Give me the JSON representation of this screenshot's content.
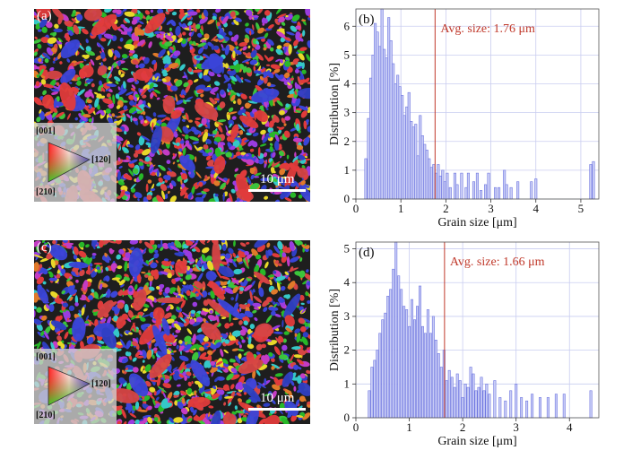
{
  "figure": {
    "panel_a": {
      "label": "(a)",
      "scale_bar": "10 μm",
      "ipf_key": {
        "dir_001": "[001]",
        "dir_120": "[120]",
        "dir_210": "[210]"
      }
    },
    "panel_c": {
      "label": "(c)",
      "scale_bar": "10 μm",
      "ipf_key": {
        "dir_001": "[001]",
        "dir_120": "[120]",
        "dir_210": "[210]"
      }
    }
  },
  "colors": {
    "bar_fill": "#c9cdf6",
    "bar_stroke": "#6e76e0",
    "avg_line": "#c0392b",
    "grid": "#c9cdf0"
  },
  "chart_data": [
    {
      "panel": "(b)",
      "type": "bar",
      "title": "",
      "xlabel": "Grain size [μm]",
      "ylabel": "Distribution [%]",
      "xlim": [
        0,
        5.4
      ],
      "ylim": [
        0,
        6.6
      ],
      "xticks": [
        0,
        1,
        2,
        3,
        4,
        5
      ],
      "yticks": [
        0,
        1,
        2,
        3,
        4,
        5,
        6
      ],
      "bin_width": 0.05,
      "avg_size": 1.76,
      "annotation": "Avg. size: 1.76 μm",
      "bins_x": [
        0.22,
        0.28,
        0.33,
        0.38,
        0.43,
        0.48,
        0.53,
        0.58,
        0.63,
        0.68,
        0.73,
        0.78,
        0.83,
        0.88,
        0.93,
        0.98,
        1.03,
        1.08,
        1.13,
        1.18,
        1.23,
        1.28,
        1.33,
        1.38,
        1.43,
        1.48,
        1.53,
        1.58,
        1.63,
        1.68,
        1.73,
        1.78,
        1.83,
        1.88,
        1.93,
        1.98,
        2.03,
        2.1,
        2.2,
        2.25,
        2.35,
        2.45,
        2.5,
        2.62,
        2.7,
        2.78,
        2.88,
        2.95,
        3.1,
        3.18,
        3.3,
        3.35,
        3.45,
        3.6,
        3.9,
        4.0,
        5.22,
        5.28
      ],
      "values": [
        1.4,
        2.8,
        4.2,
        5.0,
        6.1,
        5.8,
        5.3,
        6.6,
        5.2,
        4.9,
        6.3,
        5.5,
        4.7,
        4.0,
        4.3,
        3.9,
        3.6,
        2.9,
        3.2,
        3.7,
        2.7,
        2.5,
        2.6,
        1.5,
        2.9,
        2.2,
        1.9,
        1.7,
        1.4,
        1.1,
        1.2,
        0.9,
        1.2,
        0.8,
        1.0,
        0.6,
        0.9,
        0.4,
        0.9,
        0.5,
        0.9,
        0.4,
        0.9,
        0.6,
        0.9,
        0.3,
        0.5,
        0.9,
        0.4,
        0.4,
        1.0,
        0.5,
        0.4,
        0.6,
        0.6,
        0.7,
        1.2,
        1.3
      ]
    },
    {
      "panel": "(d)",
      "type": "bar",
      "title": "",
      "xlabel": "Grain size [μm]",
      "ylabel": "Distribution [%]",
      "xlim": [
        0,
        4.55
      ],
      "ylim": [
        0,
        5.2
      ],
      "xticks": [
        0,
        1,
        2,
        3,
        4
      ],
      "yticks": [
        0,
        1,
        2,
        3,
        4,
        5
      ],
      "bin_width": 0.04,
      "avg_size": 1.66,
      "annotation": "Avg. size: 1.66 μm",
      "bins_x": [
        0.25,
        0.3,
        0.35,
        0.4,
        0.45,
        0.5,
        0.55,
        0.6,
        0.65,
        0.7,
        0.75,
        0.8,
        0.85,
        0.9,
        0.95,
        1.0,
        1.05,
        1.1,
        1.15,
        1.2,
        1.25,
        1.3,
        1.35,
        1.4,
        1.45,
        1.5,
        1.55,
        1.6,
        1.65,
        1.7,
        1.75,
        1.8,
        1.85,
        1.9,
        1.95,
        2.0,
        2.05,
        2.1,
        2.15,
        2.2,
        2.25,
        2.3,
        2.35,
        2.4,
        2.45,
        2.5,
        2.6,
        2.7,
        2.8,
        2.9,
        3.0,
        3.1,
        3.2,
        3.3,
        3.45,
        3.6,
        3.75,
        3.9,
        4.4
      ],
      "values": [
        0.8,
        1.5,
        1.7,
        2.0,
        2.5,
        2.9,
        3.1,
        3.6,
        3.8,
        4.4,
        5.2,
        4.2,
        3.8,
        3.3,
        3.2,
        2.7,
        3.5,
        2.9,
        3.3,
        3.9,
        2.7,
        2.5,
        3.2,
        2.5,
        3.0,
        2.3,
        1.9,
        1.5,
        2.0,
        1.1,
        1.4,
        1.2,
        0.9,
        1.3,
        1.1,
        0.6,
        1.0,
        0.9,
        1.5,
        1.3,
        0.8,
        0.9,
        1.2,
        0.8,
        1.0,
        0.7,
        1.1,
        0.6,
        0.5,
        0.8,
        1.0,
        0.6,
        0.5,
        0.7,
        0.6,
        0.6,
        0.7,
        0.7,
        0.8
      ]
    }
  ]
}
